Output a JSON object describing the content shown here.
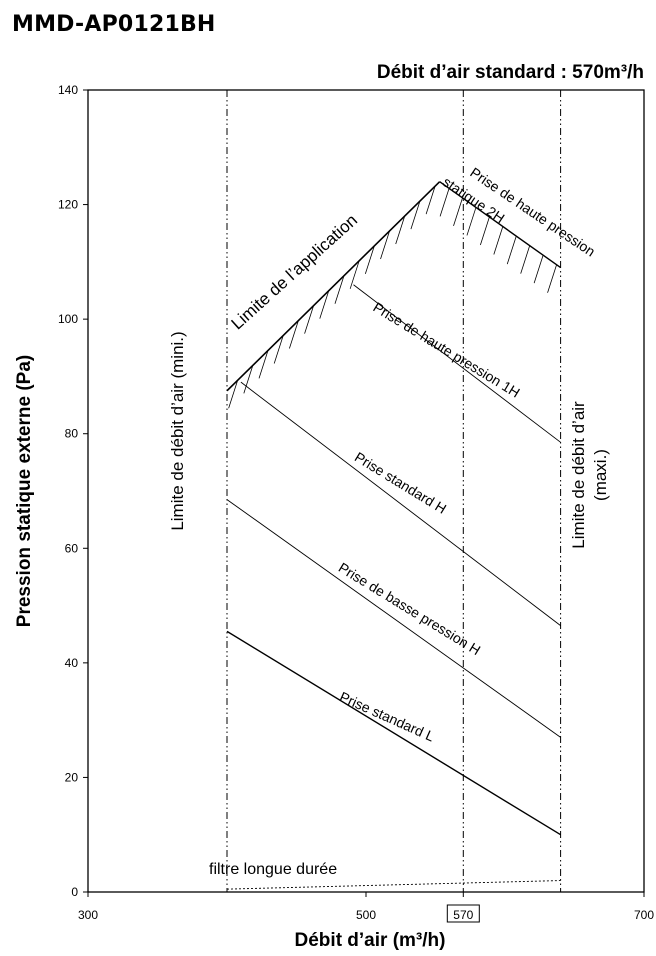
{
  "model": "MMD-AP0121BH",
  "chart_data": {
    "type": "line",
    "title": "Débit d’air standard : 570m³/h",
    "xlabel": "Débit d’air (m³/h)",
    "ylabel": "Pression statique externe (Pa)",
    "xlim": [
      300,
      700
    ],
    "ylim": [
      0,
      140
    ],
    "xticks": [
      "300",
      "500",
      "570",
      "700"
    ],
    "yticks": [
      "0",
      "20",
      "40",
      "60",
      "80",
      "100",
      "120",
      "140"
    ],
    "highlight_tick": "570",
    "grid": false,
    "vertical_limits": {
      "min": 400,
      "standard": 570,
      "max": 640,
      "min_label": "Limite de débit d’air (mini.)",
      "max_label_1": "Limite de débit d’air",
      "max_label_2": "(maxi.)"
    },
    "application_limit": {
      "label": "Limite de l’application",
      "points": [
        [
          400,
          87.5
        ],
        [
          553,
          124
        ],
        [
          640,
          109
        ]
      ]
    },
    "series": [
      {
        "name": "Prise de haute pression statique 2H",
        "label_1": "Prise de haute pression",
        "label_2": "statique 2H",
        "x": [
          553,
          640
        ],
        "y": [
          124,
          109
        ]
      },
      {
        "name": "Prise de haute pression 1H",
        "label": "Prise de haute pression 1H",
        "x": [
          491,
          640
        ],
        "y": [
          106,
          78.5
        ]
      },
      {
        "name": "Prise standard H",
        "label": "Prise standard H",
        "x": [
          410,
          640
        ],
        "y": [
          89,
          46.5
        ]
      },
      {
        "name": "Prise de basse pression H",
        "label": "Prise de basse pression H",
        "x": [
          400,
          640
        ],
        "y": [
          68.5,
          27
        ]
      },
      {
        "name": "Prise standard L",
        "label": "Prise standard L",
        "x": [
          400,
          640
        ],
        "y": [
          45.5,
          10
        ]
      },
      {
        "name": "filtre longue durée",
        "label": "filtre longue durée",
        "x": [
          400,
          640
        ],
        "y": [
          0.5,
          2
        ]
      }
    ]
  }
}
